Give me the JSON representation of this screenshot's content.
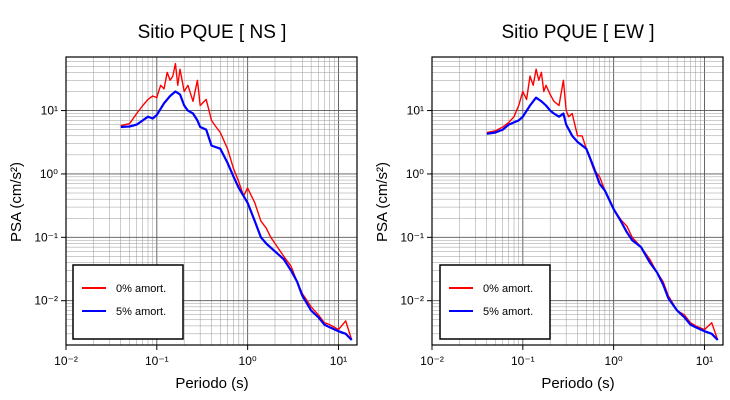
{
  "chart_data": [
    {
      "type": "line",
      "title": "Sitio PQUE [ NS ]",
      "xlabel": "Periodo (s)",
      "ylabel": "PSA (cm/s²)",
      "xscale": "log",
      "yscale": "log",
      "xlim": [
        0.01,
        16
      ],
      "ylim": [
        0.002,
        70
      ],
      "xticks": [
        "10⁻²",
        "10⁻¹",
        "10⁰",
        "10¹"
      ],
      "yticks": [
        "10⁻²",
        "10⁻¹",
        "10⁰",
        "10¹"
      ],
      "grid": true,
      "legend_position": "bottom-left",
      "series": [
        {
          "name": "0% amort.",
          "color": "#ff0000",
          "x": [
            0.04,
            0.05,
            0.06,
            0.07,
            0.08,
            0.09,
            0.1,
            0.11,
            0.12,
            0.13,
            0.14,
            0.15,
            0.16,
            0.17,
            0.18,
            0.2,
            0.22,
            0.25,
            0.28,
            0.3,
            0.35,
            0.4,
            0.45,
            0.5,
            0.6,
            0.7,
            0.8,
            0.9,
            1.0,
            1.2,
            1.4,
            1.6,
            1.8,
            2.0,
            2.5,
            3.0,
            3.5,
            4.0,
            5.0,
            6.0,
            7.0,
            8.0,
            10.0,
            12.0,
            14.0
          ],
          "y": [
            5.8,
            6.2,
            9,
            12,
            15,
            17,
            16,
            25,
            22,
            40,
            30,
            35,
            55,
            25,
            45,
            20,
            25,
            14,
            30,
            12,
            15,
            7,
            5.5,
            4.5,
            2.5,
            1.2,
            0.75,
            0.45,
            0.6,
            0.35,
            0.18,
            0.14,
            0.1,
            0.08,
            0.05,
            0.035,
            0.02,
            0.013,
            0.008,
            0.006,
            0.0045,
            0.0042,
            0.0035,
            0.0048,
            0.0024
          ]
        },
        {
          "name": "5% amort.",
          "color": "#0000ff",
          "x": [
            0.04,
            0.05,
            0.06,
            0.07,
            0.08,
            0.09,
            0.1,
            0.12,
            0.14,
            0.16,
            0.18,
            0.2,
            0.22,
            0.25,
            0.28,
            0.3,
            0.35,
            0.4,
            0.5,
            0.6,
            0.7,
            0.8,
            1.0,
            1.2,
            1.4,
            1.6,
            2.0,
            2.5,
            3.0,
            3.5,
            4.0,
            5.0,
            6.0,
            7.0,
            8.0,
            10.0,
            12.0,
            14.0
          ],
          "y": [
            5.5,
            5.6,
            6,
            7,
            8,
            7.5,
            8.5,
            13,
            17,
            20,
            18,
            12,
            10,
            9,
            7,
            5.5,
            5,
            2.8,
            2.5,
            1.5,
            0.9,
            0.6,
            0.35,
            0.18,
            0.1,
            0.08,
            0.06,
            0.045,
            0.03,
            0.02,
            0.012,
            0.007,
            0.0055,
            0.0042,
            0.0038,
            0.0033,
            0.003,
            0.0024
          ]
        }
      ]
    },
    {
      "type": "line",
      "title": "Sitio PQUE [ EW ]",
      "xlabel": "Periodo (s)",
      "ylabel": "PSA (cm/s²)",
      "xscale": "log",
      "yscale": "log",
      "xlim": [
        0.01,
        16
      ],
      "ylim": [
        0.002,
        70
      ],
      "xticks": [
        "10⁻²",
        "10⁻¹",
        "10⁰",
        "10¹"
      ],
      "yticks": [
        "10⁻²",
        "10⁻¹",
        "10⁰",
        "10¹"
      ],
      "grid": true,
      "legend_position": "bottom-left",
      "series": [
        {
          "name": "0% amort.",
          "color": "#ff0000",
          "x": [
            0.04,
            0.05,
            0.06,
            0.07,
            0.08,
            0.09,
            0.1,
            0.11,
            0.12,
            0.13,
            0.14,
            0.15,
            0.16,
            0.17,
            0.18,
            0.2,
            0.22,
            0.25,
            0.28,
            0.3,
            0.32,
            0.35,
            0.4,
            0.45,
            0.5,
            0.6,
            0.7,
            0.8,
            1.0,
            1.2,
            1.4,
            1.6,
            2.0,
            2.5,
            3.0,
            3.5,
            4.0,
            5.0,
            6.0,
            7.0,
            8.0,
            10.0,
            12.0,
            14.0
          ],
          "y": [
            4.5,
            4.8,
            5.5,
            6.5,
            8,
            12,
            20,
            15,
            35,
            25,
            45,
            30,
            40,
            20,
            25,
            18,
            14,
            12,
            30,
            10,
            8,
            9,
            4,
            4,
            2.5,
            1.2,
            0.9,
            0.55,
            0.28,
            0.19,
            0.15,
            0.1,
            0.07,
            0.045,
            0.028,
            0.02,
            0.012,
            0.007,
            0.006,
            0.0045,
            0.004,
            0.0035,
            0.0045,
            0.0024
          ]
        },
        {
          "name": "5% amort.",
          "color": "#0000ff",
          "x": [
            0.04,
            0.05,
            0.06,
            0.07,
            0.08,
            0.09,
            0.1,
            0.12,
            0.14,
            0.16,
            0.18,
            0.2,
            0.22,
            0.25,
            0.28,
            0.3,
            0.35,
            0.4,
            0.5,
            0.6,
            0.7,
            0.8,
            1.0,
            1.2,
            1.4,
            1.6,
            2.0,
            2.5,
            3.0,
            3.5,
            4.0,
            5.0,
            6.0,
            7.0,
            8.0,
            10.0,
            12.0,
            14.0
          ],
          "y": [
            4.3,
            4.5,
            5,
            6,
            6.5,
            7,
            8,
            12,
            16,
            14,
            12,
            10,
            9,
            8,
            9,
            6,
            4,
            3.2,
            2.5,
            1.3,
            0.7,
            0.55,
            0.28,
            0.18,
            0.12,
            0.09,
            0.07,
            0.04,
            0.028,
            0.018,
            0.011,
            0.007,
            0.0055,
            0.0042,
            0.0038,
            0.0033,
            0.003,
            0.0024
          ]
        }
      ]
    }
  ]
}
